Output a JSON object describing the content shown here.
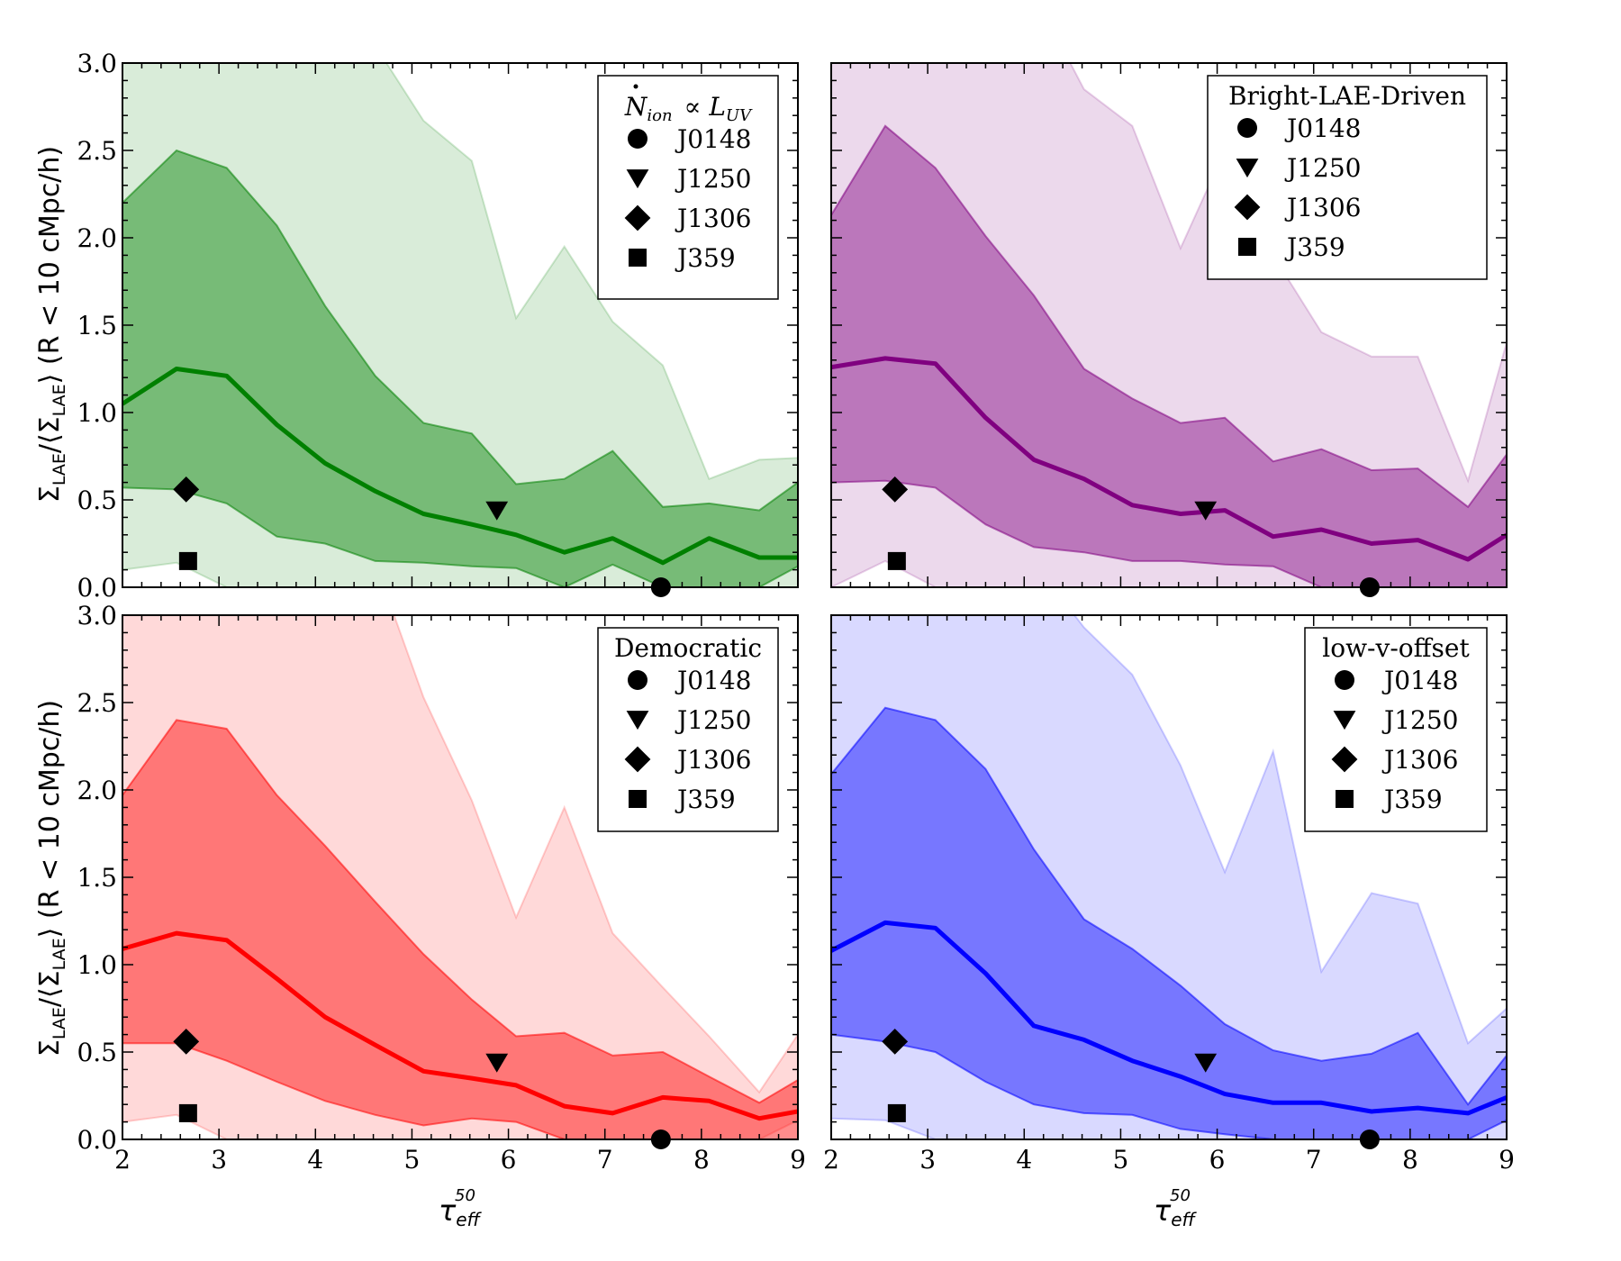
{
  "figure": {
    "ylabel_parts": {
      "sym": "Σ",
      "sub": "LAE",
      "rest": " (R < 10 cMpc/h)"
    },
    "xlabel_parts": {
      "sym": "τ",
      "sub": "eff",
      "sup": "50"
    }
  },
  "chart_data": [
    {
      "type": "area",
      "panel": "top-left",
      "legend_title": "Ṅ_ion ∝ L_UV",
      "legend_title_parts": {
        "n": "N",
        "ion": "ion",
        "prop": "∝",
        "l": "L",
        "uv": "UV"
      },
      "legend_placement": "top-right",
      "color": "#008000",
      "x": [
        2.0,
        2.56,
        3.08,
        3.6,
        4.1,
        4.62,
        5.12,
        5.62,
        6.08,
        6.58,
        7.08,
        7.6,
        8.08,
        8.6,
        9.0
      ],
      "median": [
        1.05,
        1.25,
        1.21,
        0.93,
        0.71,
        0.55,
        0.42,
        0.36,
        0.3,
        0.2,
        0.28,
        0.14,
        0.28,
        0.17,
        0.17
      ],
      "inner_low": [
        0.57,
        0.56,
        0.48,
        0.29,
        0.25,
        0.15,
        0.14,
        0.12,
        0.11,
        0.0,
        0.13,
        0.0,
        0.0,
        0.0,
        0.12
      ],
      "inner_high": [
        2.2,
        2.5,
        2.4,
        2.07,
        1.61,
        1.21,
        0.94,
        0.88,
        0.59,
        0.62,
        0.78,
        0.46,
        0.48,
        0.44,
        0.6
      ],
      "outer_low": [
        0.1,
        0.14,
        0.0,
        0.0,
        0.0,
        0.0,
        0.0,
        0.0,
        0.0,
        0.0,
        0.0,
        0.0,
        0.0,
        0.0,
        0.0
      ],
      "outer_high": [
        3.5,
        3.5,
        3.5,
        3.5,
        3.3,
        3.1,
        2.67,
        2.44,
        1.54,
        1.95,
        1.52,
        1.27,
        0.62,
        0.73,
        0.74
      ],
      "xlim": [
        2,
        9
      ],
      "ylim": [
        0,
        3
      ],
      "x_ticks": [
        "2",
        "3",
        "4",
        "5",
        "6",
        "7",
        "8",
        "9"
      ],
      "y_ticks": [
        "0.0",
        "0.5",
        "1.0",
        "1.5",
        "2.0",
        "2.5",
        "3.0"
      ],
      "show_x_ticklabels": false,
      "show_y_ticklabels": true,
      "observations": [
        {
          "name": "J0148",
          "marker": "circle",
          "x": 7.58,
          "y": 0.0
        },
        {
          "name": "J1250",
          "marker": "triangle-down",
          "x": 5.88,
          "y": 0.44
        },
        {
          "name": "J1306",
          "marker": "diamond",
          "x": 2.66,
          "y": 0.56
        },
        {
          "name": "J359",
          "marker": "square",
          "x": 2.68,
          "y": 0.15
        }
      ]
    },
    {
      "type": "area",
      "panel": "top-right",
      "legend_title": "Bright-LAE-Driven",
      "legend_placement": "top-right",
      "color": "#800080",
      "x": [
        2.0,
        2.56,
        3.08,
        3.6,
        4.1,
        4.62,
        5.12,
        5.62,
        6.08,
        6.58,
        7.08,
        7.6,
        8.08,
        8.6,
        9.0
      ],
      "median": [
        1.26,
        1.31,
        1.28,
        0.97,
        0.73,
        0.62,
        0.47,
        0.42,
        0.44,
        0.29,
        0.33,
        0.25,
        0.27,
        0.16,
        0.3
      ],
      "inner_low": [
        0.6,
        0.61,
        0.57,
        0.36,
        0.23,
        0.2,
        0.15,
        0.15,
        0.13,
        0.12,
        0.0,
        0.0,
        0.0,
        0.0,
        0.0
      ],
      "inner_high": [
        2.13,
        2.64,
        2.4,
        2.01,
        1.67,
        1.25,
        1.08,
        0.94,
        0.97,
        0.72,
        0.79,
        0.67,
        0.68,
        0.46,
        0.76
      ],
      "outer_low": [
        0.0,
        0.15,
        0.0,
        0.0,
        0.0,
        0.0,
        0.0,
        0.0,
        0.0,
        0.0,
        0.0,
        0.0,
        0.0,
        0.0,
        0.0
      ],
      "outer_high": [
        3.5,
        3.5,
        3.5,
        3.5,
        3.4,
        2.85,
        2.64,
        1.94,
        2.5,
        1.9,
        1.46,
        1.32,
        1.32,
        0.61,
        1.4
      ],
      "xlim": [
        2,
        9
      ],
      "ylim": [
        0,
        3
      ],
      "x_ticks": [
        "2",
        "3",
        "4",
        "5",
        "6",
        "7",
        "8",
        "9"
      ],
      "y_ticks": [
        "0.0",
        "0.5",
        "1.0",
        "1.5",
        "2.0",
        "2.5",
        "3.0"
      ],
      "show_x_ticklabels": false,
      "show_y_ticklabels": false,
      "observations": [
        {
          "name": "J0148",
          "marker": "circle",
          "x": 7.58,
          "y": 0.0
        },
        {
          "name": "J1250",
          "marker": "triangle-down",
          "x": 5.88,
          "y": 0.44
        },
        {
          "name": "J1306",
          "marker": "diamond",
          "x": 2.66,
          "y": 0.56
        },
        {
          "name": "J359",
          "marker": "square",
          "x": 2.68,
          "y": 0.15
        }
      ]
    },
    {
      "type": "area",
      "panel": "bottom-left",
      "legend_title": "Democratic",
      "legend_placement": "top-right",
      "color": "#ff0000",
      "x": [
        2.0,
        2.56,
        3.08,
        3.6,
        4.1,
        4.62,
        5.12,
        5.62,
        6.08,
        6.58,
        7.08,
        7.6,
        8.08,
        8.6,
        9.0
      ],
      "median": [
        1.09,
        1.18,
        1.14,
        0.92,
        0.7,
        0.54,
        0.39,
        0.35,
        0.31,
        0.19,
        0.15,
        0.24,
        0.22,
        0.12,
        0.16
      ],
      "inner_low": [
        0.55,
        0.55,
        0.45,
        0.33,
        0.22,
        0.14,
        0.08,
        0.12,
        0.1,
        0.0,
        0.0,
        0.0,
        0.0,
        0.0,
        0.0
      ],
      "inner_high": [
        1.97,
        2.4,
        2.35,
        1.97,
        1.68,
        1.36,
        1.06,
        0.8,
        0.59,
        0.61,
        0.48,
        0.5,
        0.36,
        0.21,
        0.34
      ],
      "outer_low": [
        0.1,
        0.14,
        0.0,
        0.0,
        0.0,
        0.0,
        0.0,
        0.0,
        0.0,
        0.0,
        0.0,
        0.0,
        0.0,
        0.0,
        0.11
      ],
      "outer_high": [
        3.5,
        3.5,
        3.5,
        3.5,
        3.5,
        3.3,
        2.53,
        1.94,
        1.27,
        1.9,
        1.18,
        0.87,
        0.59,
        0.27,
        0.6
      ],
      "xlim": [
        2,
        9
      ],
      "ylim": [
        0,
        3
      ],
      "x_ticks": [
        "2",
        "3",
        "4",
        "5",
        "6",
        "7",
        "8",
        "9"
      ],
      "y_ticks": [
        "0.0",
        "0.5",
        "1.0",
        "1.5",
        "2.0",
        "2.5",
        "3.0"
      ],
      "show_x_ticklabels": true,
      "show_y_ticklabels": true,
      "observations": [
        {
          "name": "J0148",
          "marker": "circle",
          "x": 7.58,
          "y": 0.0
        },
        {
          "name": "J1250",
          "marker": "triangle-down",
          "x": 5.88,
          "y": 0.44
        },
        {
          "name": "J1306",
          "marker": "diamond",
          "x": 2.66,
          "y": 0.56
        },
        {
          "name": "J359",
          "marker": "square",
          "x": 2.68,
          "y": 0.15
        }
      ]
    },
    {
      "type": "area",
      "panel": "bottom-right",
      "legend_title": "low-v-offset",
      "legend_placement": "top-right",
      "color": "#0000ff",
      "x": [
        2.0,
        2.56,
        3.08,
        3.6,
        4.1,
        4.62,
        5.12,
        5.62,
        6.08,
        6.58,
        7.08,
        7.6,
        8.08,
        8.6,
        9.0
      ],
      "median": [
        1.08,
        1.24,
        1.21,
        0.95,
        0.65,
        0.57,
        0.45,
        0.36,
        0.26,
        0.21,
        0.21,
        0.16,
        0.18,
        0.15,
        0.24
      ],
      "inner_low": [
        0.6,
        0.56,
        0.5,
        0.33,
        0.2,
        0.15,
        0.14,
        0.06,
        0.03,
        0.0,
        0.0,
        0.0,
        0.0,
        0.0,
        0.11
      ],
      "inner_high": [
        2.09,
        2.47,
        2.4,
        2.12,
        1.66,
        1.26,
        1.09,
        0.88,
        0.66,
        0.51,
        0.45,
        0.49,
        0.61,
        0.2,
        0.48
      ],
      "outer_low": [
        0.12,
        0.11,
        0.0,
        0.0,
        0.0,
        0.0,
        0.0,
        0.0,
        0.0,
        0.0,
        0.0,
        0.0,
        0.0,
        0.0,
        0.0
      ],
      "outer_high": [
        3.5,
        3.5,
        3.5,
        3.5,
        3.3,
        2.93,
        2.66,
        2.14,
        1.53,
        2.22,
        0.96,
        1.41,
        1.35,
        0.55,
        0.75
      ],
      "xlim": [
        2,
        9
      ],
      "ylim": [
        0,
        3
      ],
      "x_ticks": [
        "2",
        "3",
        "4",
        "5",
        "6",
        "7",
        "8",
        "9"
      ],
      "y_ticks": [
        "0.0",
        "0.5",
        "1.0",
        "1.5",
        "2.0",
        "2.5",
        "3.0"
      ],
      "show_x_ticklabels": true,
      "show_y_ticklabels": false,
      "observations": [
        {
          "name": "J0148",
          "marker": "circle",
          "x": 7.58,
          "y": 0.0
        },
        {
          "name": "J1250",
          "marker": "triangle-down",
          "x": 5.88,
          "y": 0.44
        },
        {
          "name": "J1306",
          "marker": "diamond",
          "x": 2.66,
          "y": 0.56
        },
        {
          "name": "J359",
          "marker": "square",
          "x": 2.68,
          "y": 0.15
        }
      ]
    }
  ]
}
